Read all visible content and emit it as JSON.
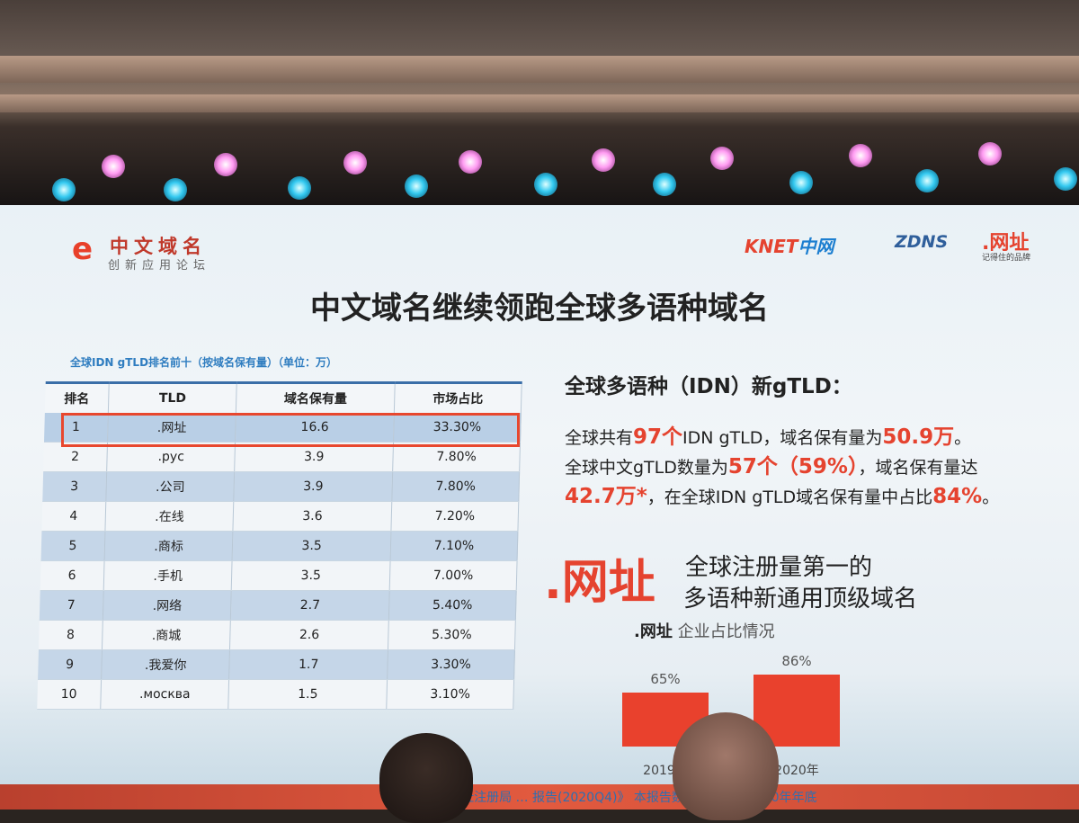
{
  "header": {
    "brand_mark": "e",
    "brand_title": "中文域名",
    "brand_subtitle": "创新应用论坛",
    "sponsor_knet": "KNET",
    "sponsor_knet_cn": "中网",
    "sponsor_zdns": "ZDNS",
    "sponsor_wangzhi": ".网址",
    "sponsor_wangzhi_tagline": "记得住的品牌"
  },
  "title": "中文域名继续领跑全球多语种域名",
  "table": {
    "caption": "全球IDN gTLD排名前十（按域名保有量）（单位：万）",
    "headers": [
      "排名",
      "TLD",
      "域名保有量",
      "市场占比"
    ],
    "rows": [
      [
        "1",
        ".网址",
        "16.6",
        "33.30%"
      ],
      [
        "2",
        ".рус",
        "3.9",
        "7.80%"
      ],
      [
        "3",
        ".公司",
        "3.9",
        "7.80%"
      ],
      [
        "4",
        ".在线",
        "3.6",
        "7.20%"
      ],
      [
        "5",
        ".商标",
        "3.5",
        "7.10%"
      ],
      [
        "6",
        ".手机",
        "3.5",
        "7.00%"
      ],
      [
        "7",
        ".网络",
        "2.7",
        "5.40%"
      ],
      [
        "8",
        ".商城",
        "2.6",
        "5.30%"
      ],
      [
        "9",
        ".我爱你",
        "1.7",
        "3.30%"
      ],
      [
        "10",
        ".москва",
        "1.5",
        "3.10%"
      ]
    ],
    "highlight_color": "#e8472e"
  },
  "right": {
    "heading": "全球多语种（IDN）新gTLD：",
    "line1": {
      "a": "全球共有",
      "b": "97个",
      "c": "IDN  gTLD，域名保有量为",
      "d": "50.9万",
      "e": "。"
    },
    "line2": {
      "a": "全球中文gTLD数量为",
      "b": "57个（59%）",
      "c": "，域名保有量达"
    },
    "line3": {
      "a": "42.7万*",
      "b": "，在全球IDN gTLD域名保有量中占比",
      "c": "84%",
      "d": "。"
    },
    "logo": ".网址",
    "slogan1": "全球注册量第一的",
    "slogan2": "多语种新通用顶级域名"
  },
  "chart_data": {
    "type": "bar",
    "title_brand": ".网址",
    "title": "企业占比情况",
    "categories": [
      "2019年",
      "2020年"
    ],
    "values": [
      65,
      86
    ],
    "data_labels": [
      "65%",
      "86%"
    ],
    "color": "#e9412d"
  },
  "footer": {
    "source": "《ZDNS&.网址注册局 … 报告(2020Q4)》 本报告数据均截止于2020年年底"
  },
  "colors": {
    "accent_red": "#e5432f",
    "table_blue": "#c5d6e8",
    "caption_blue": "#2f7dc0"
  }
}
